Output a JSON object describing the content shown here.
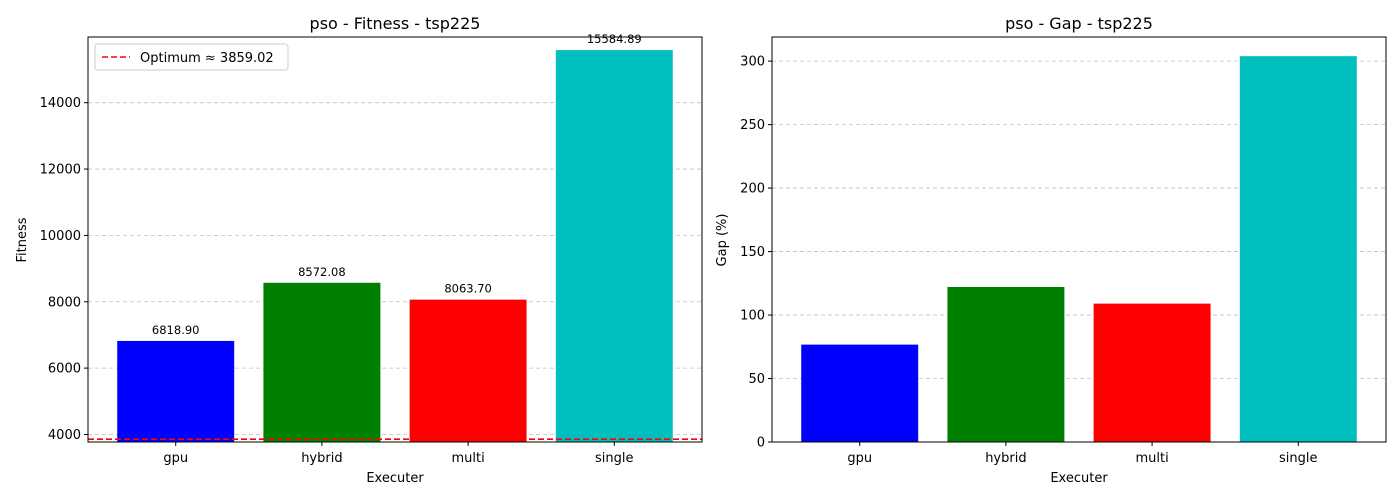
{
  "chart_data": [
    {
      "type": "bar",
      "title": "pso - Fitness - tsp225",
      "xlabel": "Executer",
      "ylabel": "Fitness",
      "categories": [
        "gpu",
        "hybrid",
        "multi",
        "single"
      ],
      "values": [
        6818.9,
        8572.08,
        8063.7,
        15584.89
      ],
      "value_labels": [
        "6818.90",
        "8572.08",
        "8063.70",
        "15584.89"
      ],
      "colors": [
        "#0000ff",
        "#008000",
        "#ff0000",
        "#00bfbf"
      ],
      "ylim": [
        3773,
        15980
      ],
      "yticks": [
        4000,
        6000,
        8000,
        10000,
        12000,
        14000
      ],
      "grid": "y-dashed",
      "reference_line": {
        "label": "Optimum ≈ 3859.02",
        "value": 3859.02,
        "color": "#ff0000",
        "style": "dashed"
      },
      "legend": "top-left"
    },
    {
      "type": "bar",
      "title": "pso - Gap - tsp225",
      "xlabel": "Executer",
      "ylabel": "Gap (%)",
      "categories": [
        "gpu",
        "hybrid",
        "multi",
        "single"
      ],
      "values": [
        76.7,
        122.1,
        109.0,
        303.9
      ],
      "colors": [
        "#0000ff",
        "#008000",
        "#ff0000",
        "#00bfbf"
      ],
      "ylim": [
        0,
        319
      ],
      "yticks": [
        0,
        50,
        100,
        150,
        200,
        250,
        300
      ],
      "grid": "y-dashed"
    }
  ]
}
